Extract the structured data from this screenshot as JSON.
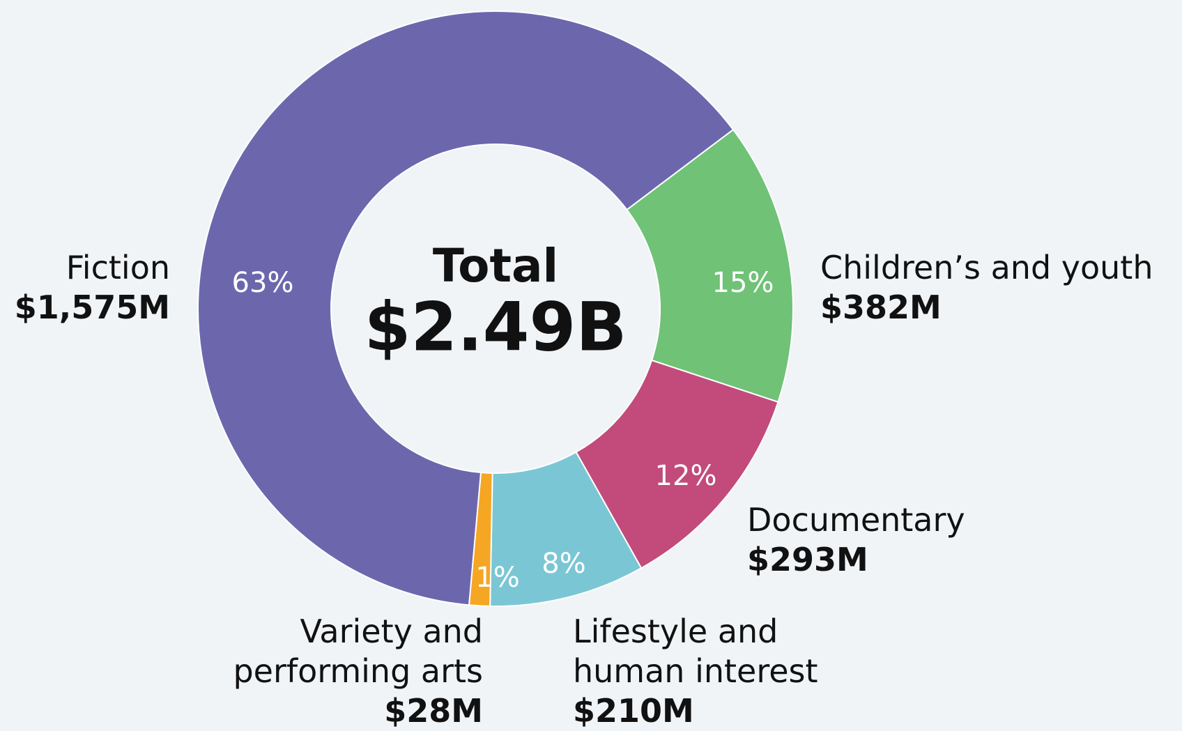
{
  "chart_data": {
    "type": "pie",
    "center_title": "Total",
    "center_value": "$2.49B",
    "categories": [
      "Children’s and youth",
      "Documentary",
      "Lifestyle and human interest",
      "Variety and performing arts",
      "Fiction"
    ],
    "values": [
      382,
      293,
      210,
      28,
      1575
    ],
    "value_labels": [
      "$382M",
      "$293M",
      "$210M",
      "$28M",
      "$1,575M"
    ],
    "percent_labels": [
      "15%",
      "12%",
      "8%",
      "1%",
      "63%"
    ],
    "colors": [
      "#6fc276",
      "#c24b7b",
      "#7bc6d4",
      "#f5a623",
      "#6c67ad"
    ],
    "start_angle": 53,
    "donut": true
  }
}
